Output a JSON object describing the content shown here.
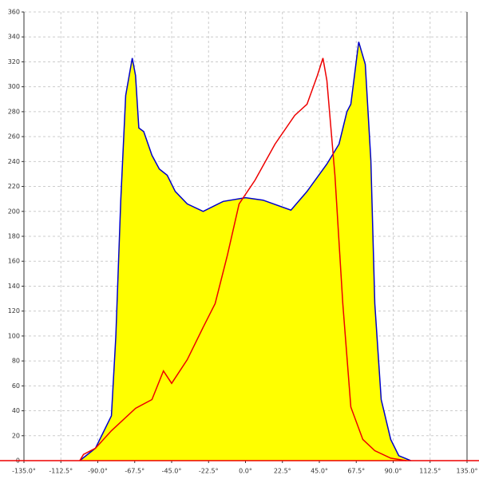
{
  "chart_data": {
    "type": "line",
    "xlim": [
      -135,
      135
    ],
    "xticks": [
      {
        "value": -135,
        "label": "-135.0°"
      },
      {
        "value": -112.5,
        "label": "-112.5°"
      },
      {
        "value": -90,
        "label": "-90.0°"
      },
      {
        "value": -67.5,
        "label": "-67.5°"
      },
      {
        "value": -45,
        "label": "-45.0°"
      },
      {
        "value": -22.5,
        "label": "-22.5°"
      },
      {
        "value": 0,
        "label": "0.0°"
      },
      {
        "value": 22.5,
        "label": "22.5°"
      },
      {
        "value": 45,
        "label": "45.0°"
      },
      {
        "value": 67.5,
        "label": "67.5°"
      },
      {
        "value": 90,
        "label": "90.0°"
      },
      {
        "value": 112.5,
        "label": "112.5°"
      },
      {
        "value": 135,
        "label": "135.0°"
      }
    ],
    "ylim": [
      0,
      360
    ],
    "yticks": [
      0,
      20,
      40,
      60,
      80,
      100,
      120,
      140,
      160,
      180,
      200,
      220,
      240,
      260,
      280,
      300,
      320,
      340,
      360
    ],
    "grid": true,
    "series": [
      {
        "color": "#0000cc",
        "fill": "#ffff00",
        "x": [
          -101,
          -91.4,
          -81.7,
          -79,
          -76,
          -73,
          -69,
          -67,
          -65,
          -62,
          -57,
          -52.5,
          -47.7,
          -42.8,
          -35.5,
          -25.8,
          -13.6,
          0,
          10.7,
          27.7,
          37.5,
          49.6,
          57,
          61.8,
          64.2,
          69,
          73,
          76.4,
          78.8,
          82.7,
          88.5,
          93.4,
          100.7
        ],
        "values": [
          0,
          10,
          36,
          100,
          209,
          293,
          323,
          309,
          267,
          264,
          245,
          234,
          229,
          216,
          206,
          200,
          208,
          211,
          209,
          201,
          216,
          238,
          254,
          280,
          286,
          336,
          318,
          241,
          126,
          49,
          17,
          4,
          0
        ]
      },
      {
        "color": "#ee0000",
        "x": [
          -101,
          -98.7,
          -91.4,
          -81.7,
          -67,
          -57,
          -50,
          -45,
          -35.5,
          -25.8,
          -18.5,
          -11,
          -3.9,
          5.8,
          18,
          30,
          37.5,
          43.8,
          47.2,
          49.6,
          54.5,
          59.3,
          64.2,
          71.5,
          78.8,
          88.5,
          98
        ],
        "values": [
          0,
          5,
          10,
          24,
          42,
          49,
          72,
          62,
          81,
          107,
          126,
          165,
          206,
          225,
          254,
          277,
          286,
          309,
          323,
          305,
          229,
          126,
          43,
          17,
          8,
          2,
          0
        ]
      }
    ]
  }
}
